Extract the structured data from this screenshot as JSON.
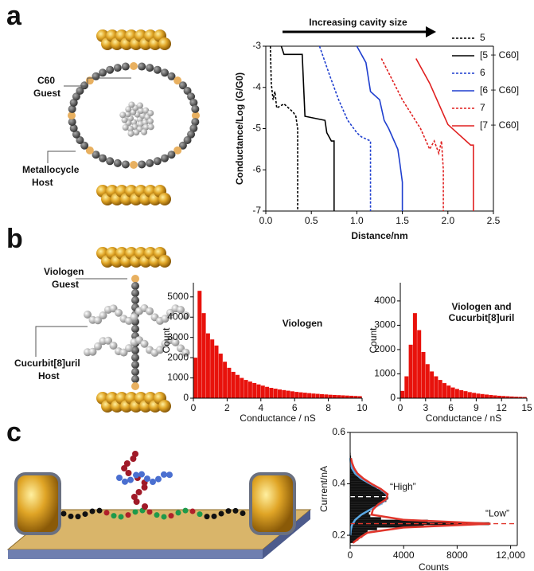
{
  "figure": {
    "panels": [
      "a",
      "b",
      "c"
    ],
    "labels": [
      "C60",
      "Guest",
      "Metallocycle",
      "Host",
      "Viologen",
      "Guest",
      "Cucurbit[8]uril",
      "Host"
    ]
  },
  "chart_data": [
    {
      "type": "line",
      "annotation": "Increasing cavity size",
      "x_label": "Distance/nm",
      "y_label": "Conductance/Log (G/G0)",
      "xlim": [
        0,
        2.5
      ],
      "xticks": [
        {
          "value": 0,
          "label": "0.0"
        },
        0.5,
        {
          "value": 1,
          "label": "1.0"
        },
        1.5,
        {
          "value": 2,
          "label": "2.0"
        },
        2.5
      ],
      "ylim": [
        -7,
        -3
      ],
      "yticks": [
        -7,
        -6,
        -5,
        -4,
        -3
      ],
      "legend": "right",
      "series": [
        {
          "name": "5",
          "color": "#000000",
          "dash": true,
          "x": [
            0.05,
            0.06,
            0.08,
            0.1,
            0.12,
            0.2,
            0.3,
            0.33,
            0.35,
            0.35
          ],
          "values": [
            -3,
            -3.9,
            -4.3,
            -4.1,
            -4.5,
            -4.4,
            -4.6,
            -4.7,
            -5,
            -7
          ]
        },
        {
          "name": "[5 + C60]",
          "color": "#000000",
          "dash": false,
          "x": [
            0.17,
            0.2,
            0.4,
            0.43,
            0.65,
            0.67,
            0.72,
            0.75,
            0.75
          ],
          "values": [
            -3,
            -3.2,
            -3.2,
            -4.7,
            -4.8,
            -5.1,
            -5.3,
            -5.3,
            -7
          ]
        },
        {
          "name": "6",
          "color": "#1f3fcf",
          "dash": true,
          "x": [
            0.59,
            0.7,
            0.8,
            0.9,
            1.0,
            1.05,
            1.15,
            1.15
          ],
          "values": [
            -3,
            -3.7,
            -4.3,
            -4.8,
            -5.1,
            -5.2,
            -5.3,
            -7
          ]
        },
        {
          "name": "[6 + C60]",
          "color": "#1f3fcf",
          "dash": false,
          "x": [
            1.0,
            1.1,
            1.15,
            1.25,
            1.3,
            1.35,
            1.45,
            1.47,
            1.5,
            1.5
          ],
          "values": [
            -3,
            -3.4,
            -4.1,
            -4.3,
            -4.8,
            -5.0,
            -5.5,
            -5.8,
            -6.3,
            -7
          ]
        },
        {
          "name": "7",
          "color": "#e02020",
          "dash": true,
          "x": [
            1.27,
            1.5,
            1.7,
            1.8,
            1.85,
            1.9,
            1.93,
            1.95,
            1.95
          ],
          "values": [
            -3.3,
            -4.3,
            -5.0,
            -5.5,
            -5.3,
            -5.6,
            -5.3,
            -6,
            -7
          ]
        },
        {
          "name": "[7 + C60]",
          "color": "#e02020",
          "dash": false,
          "x": [
            1.65,
            1.8,
            1.9,
            2.0,
            2.1,
            2.2,
            2.25,
            2.28,
            2.28
          ],
          "values": [
            -3.3,
            -3.9,
            -4.4,
            -4.9,
            -5.1,
            -5.3,
            -5.4,
            -5.4,
            -7
          ]
        }
      ]
    },
    {
      "type": "histogram",
      "title": "Viologen",
      "x_label": "Conductance / nS",
      "y_label": "Count",
      "color": "#e8120c",
      "xlim": [
        0,
        10
      ],
      "xticks": [
        0,
        2,
        4,
        6,
        8,
        10
      ],
      "ylim": [
        0,
        5700
      ],
      "yticks": [
        0,
        1000,
        2000,
        3000,
        4000,
        5000
      ],
      "bins": [
        0,
        0.25,
        0.5,
        0.75,
        1,
        1.25,
        1.5,
        1.75,
        2,
        2.25,
        2.5,
        2.75,
        3,
        3.25,
        3.5,
        3.75,
        4,
        4.25,
        4.5,
        4.75,
        5,
        5.25,
        5.5,
        5.75,
        6,
        6.25,
        6.5,
        6.75,
        7,
        7.25,
        7.5,
        7.75,
        8,
        8.25,
        8.5,
        8.75,
        9,
        9.25,
        9.5,
        9.75,
        10
      ],
      "values": [
        2000,
        5300,
        4200,
        3200,
        2900,
        2600,
        2200,
        1800,
        1500,
        1300,
        1150,
        1000,
        900,
        820,
        750,
        680,
        620,
        560,
        510,
        470,
        430,
        400,
        370,
        340,
        310,
        290,
        270,
        250,
        230,
        215,
        200,
        185,
        170,
        160,
        150,
        140,
        130,
        120,
        110,
        100
      ]
    },
    {
      "type": "histogram",
      "title": "Viologen and Cucurbit[8]uril",
      "x_label": "Conductance / nS",
      "y_label": "Count",
      "color": "#e8120c",
      "xlim": [
        0,
        15
      ],
      "xticks": [
        0,
        3,
        6,
        9,
        12,
        15
      ],
      "ylim": [
        0,
        4750
      ],
      "yticks": [
        0,
        1000,
        2000,
        3000,
        4000
      ],
      "bins": [
        0,
        0.5,
        1,
        1.5,
        2,
        2.5,
        3,
        3.5,
        4,
        4.5,
        5,
        5.5,
        6,
        6.5,
        7,
        7.5,
        8,
        8.5,
        9,
        9.5,
        10,
        10.5,
        11,
        11.5,
        12,
        12.5,
        13,
        13.5,
        14,
        14.5,
        15
      ],
      "values": [
        300,
        900,
        2200,
        3500,
        2800,
        1900,
        1400,
        1100,
        900,
        750,
        620,
        520,
        440,
        380,
        330,
        290,
        250,
        220,
        190,
        170,
        150,
        130,
        115,
        100,
        90,
        80,
        70,
        60,
        55,
        50
      ]
    },
    {
      "type": "hbar_histogram",
      "x_label": "Counts",
      "y_label": "Current/nA",
      "color": "#111111",
      "xlim": [
        0,
        12500
      ],
      "xticks": [
        0,
        4000,
        8000,
        {
          "value": 12000,
          "label": "12,000"
        }
      ],
      "ylim": [
        0.16,
        0.6
      ],
      "yticks": [
        0.2,
        0.4,
        0.6
      ],
      "bins": [
        0.17,
        0.18,
        0.19,
        0.2,
        0.21,
        0.22,
        0.23,
        0.24,
        0.25,
        0.26,
        0.27,
        0.28,
        0.29,
        0.3,
        0.31,
        0.32,
        0.33,
        0.34,
        0.35,
        0.36,
        0.37,
        0.38,
        0.39,
        0.4,
        0.41,
        0.42,
        0.43,
        0.44,
        0.45,
        0.46,
        0.47,
        0.48,
        0.49,
        0.5,
        0.51,
        0.52
      ],
      "values": [
        300,
        600,
        900,
        1100,
        1300,
        2000,
        5500,
        10400,
        5800,
        2300,
        1500,
        1400,
        1500,
        1700,
        2000,
        2400,
        2700,
        2850,
        2800,
        2600,
        2300,
        2000,
        1700,
        1400,
        1100,
        850,
        650,
        500,
        380,
        280,
        200,
        140,
        100,
        60,
        30
      ],
      "series": [
        {
          "name": "“High”",
          "color": "#5aa9e6",
          "peak": 0.35,
          "y": [
            0.2,
            0.22,
            0.24,
            0.26,
            0.28,
            0.3,
            0.32,
            0.34,
            0.36,
            0.38,
            0.4,
            0.42,
            0.44,
            0.46,
            0.48,
            0.5
          ],
          "values": [
            11,
            43,
            140,
            380,
            835,
            1510,
            2240,
            2730,
            2730,
            2240,
            1510,
            835,
            380,
            140,
            43,
            11
          ]
        },
        {
          "name": "“Low”",
          "color": "#e0352b",
          "peak": 0.245,
          "y": [
            0.17,
            0.19,
            0.21,
            0.23,
            0.245,
            0.26,
            0.28,
            0.3,
            0.32,
            0.34,
            0.36,
            0.38,
            0.4,
            0.42,
            0.44,
            0.46,
            0.48,
            0.5
          ],
          "values": [
            200,
            700,
            1300,
            4000,
            10500,
            4000,
            1600,
            1700,
            2100,
            2700,
            2800,
            2300,
            1600,
            1000,
            550,
            300,
            150,
            60
          ]
        }
      ]
    }
  ]
}
